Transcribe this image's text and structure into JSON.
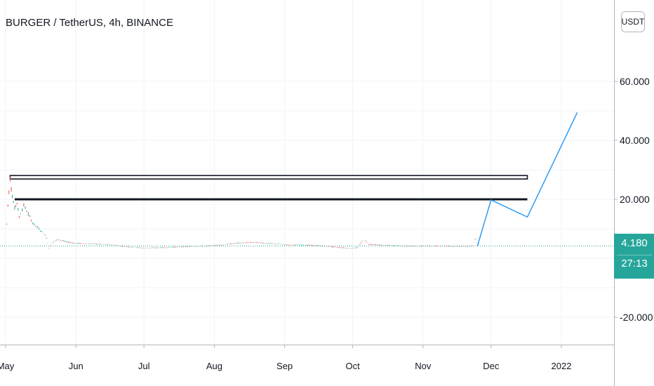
{
  "title": "BURGER / TetherUS, 4h, BINANCE",
  "currency_button": "USDT",
  "last_price_label": "4.180",
  "countdown_label": "27:13",
  "colors": {
    "up": "#26a69a",
    "down": "#ef5350",
    "projection": "#2196f3",
    "level_line": "#131722",
    "price_line": "#26a69a"
  },
  "chart_data": {
    "type": "line",
    "title": "BURGER / TetherUS, 4h, BINANCE",
    "xlabel": "",
    "ylabel": "",
    "x_ticks": [
      "May",
      "Jun",
      "Jul",
      "Aug",
      "Sep",
      "Oct",
      "Nov",
      "Dec",
      "2022"
    ],
    "y_ticks": [
      {
        "value": 60,
        "label": "60.000"
      },
      {
        "value": 40,
        "label": "40.000"
      },
      {
        "value": 20,
        "label": "20.000"
      },
      {
        "value": -20,
        "label": "-20.000"
      }
    ],
    "y_range": [
      -20,
      62
    ],
    "grid": true,
    "series": [
      {
        "kind": "price",
        "points": [
          [
            "2021-05-01",
            5.5
          ],
          [
            "2021-05-02",
            18
          ],
          [
            "2021-05-03",
            27
          ],
          [
            "2021-05-04",
            21
          ],
          [
            "2021-05-05",
            17
          ],
          [
            "2021-05-06",
            19
          ],
          [
            "2021-05-07",
            14
          ],
          [
            "2021-05-09",
            18
          ],
          [
            "2021-05-11",
            15
          ],
          [
            "2021-05-13",
            12
          ],
          [
            "2021-05-15",
            10.5
          ],
          [
            "2021-05-17",
            9
          ],
          [
            "2021-05-19",
            7
          ],
          [
            "2021-05-20",
            3.5
          ],
          [
            "2021-05-22",
            5.5
          ],
          [
            "2021-05-24",
            6.5
          ],
          [
            "2021-05-28",
            5.5
          ],
          [
            "2021-06-03",
            5
          ],
          [
            "2021-06-10",
            4.8
          ],
          [
            "2021-06-18",
            4.5
          ],
          [
            "2021-06-25",
            3.8
          ],
          [
            "2021-07-01",
            3.5
          ],
          [
            "2021-07-08",
            3.6
          ],
          [
            "2021-07-15",
            3.8
          ],
          [
            "2021-07-22",
            4.0
          ],
          [
            "2021-07-29",
            4.2
          ],
          [
            "2021-08-05",
            4.6
          ],
          [
            "2021-08-12",
            5.2
          ],
          [
            "2021-08-19",
            5.4
          ],
          [
            "2021-08-26",
            5.0
          ],
          [
            "2021-09-02",
            4.6
          ],
          [
            "2021-09-09",
            4.5
          ],
          [
            "2021-09-16",
            4.3
          ],
          [
            "2021-09-23",
            3.8
          ],
          [
            "2021-09-30",
            3.4
          ],
          [
            "2021-10-03",
            3.6
          ],
          [
            "2021-10-06",
            6.5
          ],
          [
            "2021-10-08",
            4.8
          ],
          [
            "2021-10-15",
            4.4
          ],
          [
            "2021-10-22",
            4.2
          ],
          [
            "2021-10-29",
            4.1
          ],
          [
            "2021-11-05",
            4.2
          ],
          [
            "2021-11-12",
            4.1
          ],
          [
            "2021-11-19",
            4.0
          ],
          [
            "2021-11-23",
            4.2
          ],
          [
            "2021-11-24",
            6.5
          ],
          [
            "2021-11-25",
            4.18
          ]
        ]
      },
      {
        "kind": "projection",
        "points": [
          [
            "2021-11-25",
            4.18
          ],
          [
            "2021-12-01",
            19.8
          ],
          [
            "2021-12-17",
            14
          ],
          [
            "2022-01-08",
            49.5
          ]
        ]
      }
    ],
    "horizontal_levels": [
      {
        "value": 27.5,
        "from": "2021-05-03",
        "to": "2021-12-17",
        "style": "double"
      },
      {
        "value": 20,
        "from": "2021-05-05",
        "to": "2021-12-17",
        "style": "solid"
      }
    ],
    "last_price": 4.18
  }
}
